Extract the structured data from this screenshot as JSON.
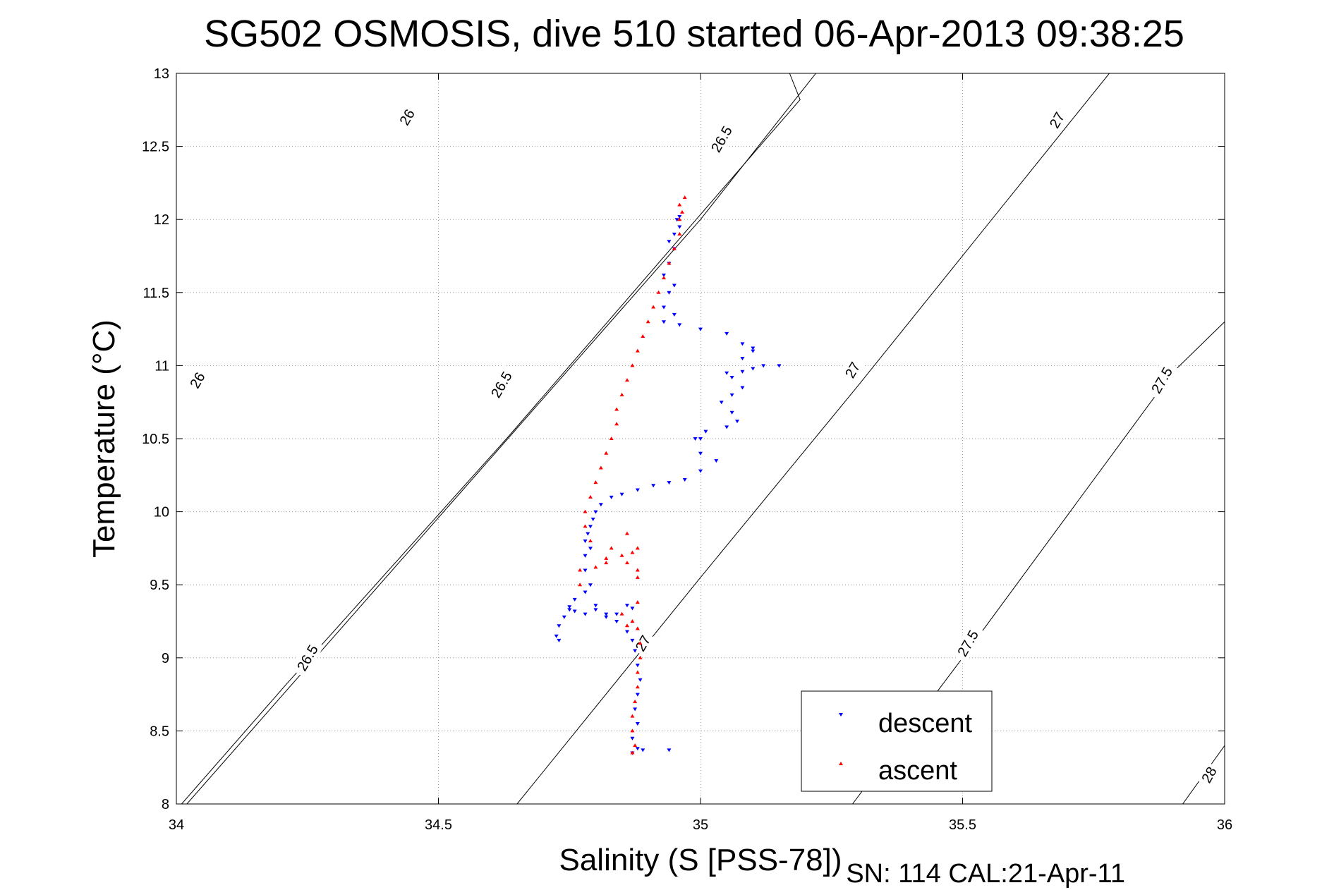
{
  "chart_data": {
    "type": "scatter",
    "title": "SG502 OSMOSIS, dive 510 started 06-Apr-2013 09:38:25",
    "xlabel": "Salinity (S [PSS-78])",
    "ylabel": "Temperature (°C)",
    "footer": "SN: 114  CAL:21-Apr-11",
    "xlim": [
      34,
      36
    ],
    "ylim": [
      8,
      13
    ],
    "xticks": [
      "34",
      "34.5",
      "35",
      "35.5",
      "36"
    ],
    "yticks": [
      "8",
      "8.5",
      "9",
      "9.5",
      "10",
      "10.5",
      "11",
      "11.5",
      "12",
      "12.5",
      "13"
    ],
    "grid": true,
    "legend_position": "bottom-right",
    "density_contours": [
      {
        "sigma": 26,
        "points": [
          [
            34.02,
            8.0
          ],
          [
            34.51,
            10.0
          ],
          [
            35.0,
            12.0
          ],
          [
            35.22,
            13.0
          ]
        ],
        "labels": [
          {
            "text": "26",
            "x": 34.04,
            "y": 10.9,
            "angle": -60
          },
          {
            "text": "26",
            "x": 34.44,
            "y": 12.7,
            "angle": -60
          }
        ]
      },
      {
        "sigma": 26.5,
        "points": [
          [
            34.01,
            8.0
          ],
          [
            34.21,
            8.82
          ],
          [
            34.63,
            10.5
          ],
          [
            35.04,
            12.2
          ],
          [
            35.19,
            12.82
          ],
          [
            35.17,
            13.0
          ]
        ],
        "labels": [
          {
            "text": "26.5",
            "x": 34.25,
            "y": 9.0,
            "angle": -60
          },
          {
            "text": "26.5",
            "x": 34.62,
            "y": 10.87,
            "angle": -60
          },
          {
            "text": "26.5",
            "x": 35.04,
            "y": 12.55,
            "angle": -60
          }
        ]
      },
      {
        "sigma": 27,
        "points": [
          [
            34.65,
            8.0
          ],
          [
            35.0,
            9.55
          ],
          [
            35.3,
            10.86
          ],
          [
            35.78,
            13.0
          ]
        ],
        "labels": [
          {
            "text": "27",
            "x": 34.89,
            "y": 9.1,
            "angle": -60
          },
          {
            "text": "27",
            "x": 35.29,
            "y": 10.97,
            "angle": -60
          },
          {
            "text": "27",
            "x": 35.68,
            "y": 12.68,
            "angle": -60
          }
        ]
      },
      {
        "sigma": 27.5,
        "points": [
          [
            35.29,
            8.0
          ],
          [
            35.5,
            9.0
          ],
          [
            35.9,
            10.95
          ],
          [
            36.0,
            11.3
          ]
        ],
        "labels": [
          {
            "text": "27.5",
            "x": 35.51,
            "y": 9.1,
            "angle": -60
          },
          {
            "text": "27.5",
            "x": 35.88,
            "y": 10.9,
            "angle": -60
          }
        ]
      },
      {
        "sigma": 28,
        "points": [
          [
            35.92,
            8.0
          ],
          [
            36.0,
            8.4
          ]
        ],
        "labels": [
          {
            "text": "28",
            "x": 35.97,
            "y": 8.2,
            "angle": -60
          }
        ]
      }
    ],
    "series": [
      {
        "name": "descent",
        "color": "#0000ff",
        "marker": "triangle-down",
        "points": [
          [
            34.87,
            8.35
          ],
          [
            34.88,
            8.38
          ],
          [
            34.89,
            8.37
          ],
          [
            34.94,
            8.37
          ],
          [
            34.87,
            8.45
          ],
          [
            34.88,
            8.55
          ],
          [
            34.875,
            8.65
          ],
          [
            34.88,
            8.75
          ],
          [
            34.885,
            8.85
          ],
          [
            34.88,
            8.95
          ],
          [
            34.875,
            9.05
          ],
          [
            34.87,
            9.12
          ],
          [
            34.86,
            9.18
          ],
          [
            34.84,
            9.25
          ],
          [
            34.82,
            9.3
          ],
          [
            34.8,
            9.33
          ],
          [
            34.78,
            9.3
          ],
          [
            34.76,
            9.32
          ],
          [
            34.75,
            9.33
          ],
          [
            34.74,
            9.28
          ],
          [
            34.73,
            9.22
          ],
          [
            34.725,
            9.15
          ],
          [
            34.73,
            9.12
          ],
          [
            34.75,
            9.35
          ],
          [
            34.8,
            9.36
          ],
          [
            34.82,
            9.28
          ],
          [
            34.84,
            9.3
          ],
          [
            34.86,
            9.36
          ],
          [
            34.87,
            9.34
          ],
          [
            34.76,
            9.4
          ],
          [
            34.78,
            9.45
          ],
          [
            34.79,
            9.5
          ],
          [
            34.78,
            9.6
          ],
          [
            34.78,
            9.7
          ],
          [
            34.79,
            9.75
          ],
          [
            34.78,
            9.8
          ],
          [
            34.785,
            9.85
          ],
          [
            34.79,
            9.9
          ],
          [
            34.795,
            9.95
          ],
          [
            34.8,
            10.0
          ],
          [
            34.81,
            10.05
          ],
          [
            34.83,
            10.1
          ],
          [
            34.85,
            10.12
          ],
          [
            34.88,
            10.15
          ],
          [
            34.91,
            10.18
          ],
          [
            34.94,
            10.2
          ],
          [
            34.97,
            10.22
          ],
          [
            35.0,
            10.28
          ],
          [
            35.03,
            10.35
          ],
          [
            35.0,
            10.4
          ],
          [
            34.99,
            10.5
          ],
          [
            35.0,
            10.5
          ],
          [
            35.01,
            10.55
          ],
          [
            35.05,
            10.58
          ],
          [
            35.07,
            10.62
          ],
          [
            35.06,
            10.68
          ],
          [
            35.04,
            10.75
          ],
          [
            35.06,
            10.8
          ],
          [
            35.08,
            10.85
          ],
          [
            35.06,
            10.92
          ],
          [
            35.05,
            10.95
          ],
          [
            35.08,
            10.96
          ],
          [
            35.1,
            10.98
          ],
          [
            35.12,
            11.0
          ],
          [
            35.15,
            11.0
          ],
          [
            35.08,
            11.05
          ],
          [
            35.1,
            11.1
          ],
          [
            35.08,
            11.15
          ],
          [
            35.1,
            11.12
          ],
          [
            35.05,
            11.22
          ],
          [
            35.0,
            11.25
          ],
          [
            34.96,
            11.28
          ],
          [
            34.93,
            11.3
          ],
          [
            34.95,
            11.35
          ],
          [
            34.93,
            11.4
          ],
          [
            34.94,
            11.5
          ],
          [
            34.95,
            11.55
          ],
          [
            34.93,
            11.62
          ],
          [
            34.94,
            11.7
          ],
          [
            34.95,
            11.8
          ],
          [
            34.94,
            11.85
          ],
          [
            34.95,
            11.9
          ],
          [
            34.96,
            11.95
          ],
          [
            34.955,
            12.0
          ],
          [
            34.96,
            12.02
          ]
        ]
      },
      {
        "name": "ascent",
        "color": "#ff0000",
        "marker": "triangle-up",
        "points": [
          [
            34.87,
            8.35
          ],
          [
            34.875,
            8.4
          ],
          [
            34.87,
            8.5
          ],
          [
            34.87,
            8.6
          ],
          [
            34.875,
            8.7
          ],
          [
            34.88,
            8.8
          ],
          [
            34.88,
            8.9
          ],
          [
            34.885,
            9.0
          ],
          [
            34.885,
            9.1
          ],
          [
            34.88,
            9.2
          ],
          [
            34.87,
            9.25
          ],
          [
            34.86,
            9.22
          ],
          [
            34.85,
            9.3
          ],
          [
            34.88,
            9.38
          ],
          [
            34.77,
            9.5
          ],
          [
            34.77,
            9.6
          ],
          [
            34.8,
            9.62
          ],
          [
            34.82,
            9.65
          ],
          [
            34.85,
            9.7
          ],
          [
            34.86,
            9.65
          ],
          [
            34.87,
            9.72
          ],
          [
            34.88,
            9.75
          ],
          [
            34.88,
            9.6
          ],
          [
            34.88,
            9.55
          ],
          [
            34.86,
            9.85
          ],
          [
            34.83,
            9.75
          ],
          [
            34.82,
            9.68
          ],
          [
            34.79,
            9.8
          ],
          [
            34.78,
            9.9
          ],
          [
            34.78,
            10.0
          ],
          [
            34.79,
            10.1
          ],
          [
            34.8,
            10.2
          ],
          [
            34.81,
            10.3
          ],
          [
            34.82,
            10.4
          ],
          [
            34.83,
            10.5
          ],
          [
            34.84,
            10.6
          ],
          [
            34.84,
            10.7
          ],
          [
            34.85,
            10.8
          ],
          [
            34.86,
            10.9
          ],
          [
            34.87,
            11.0
          ],
          [
            34.88,
            11.1
          ],
          [
            34.89,
            11.2
          ],
          [
            34.9,
            11.3
          ],
          [
            34.91,
            11.4
          ],
          [
            34.92,
            11.5
          ],
          [
            34.93,
            11.6
          ],
          [
            34.94,
            11.7
          ],
          [
            34.95,
            11.8
          ],
          [
            34.96,
            11.9
          ],
          [
            34.96,
            12.0
          ],
          [
            34.965,
            12.05
          ],
          [
            34.96,
            12.1
          ],
          [
            34.97,
            12.15
          ]
        ]
      }
    ]
  }
}
